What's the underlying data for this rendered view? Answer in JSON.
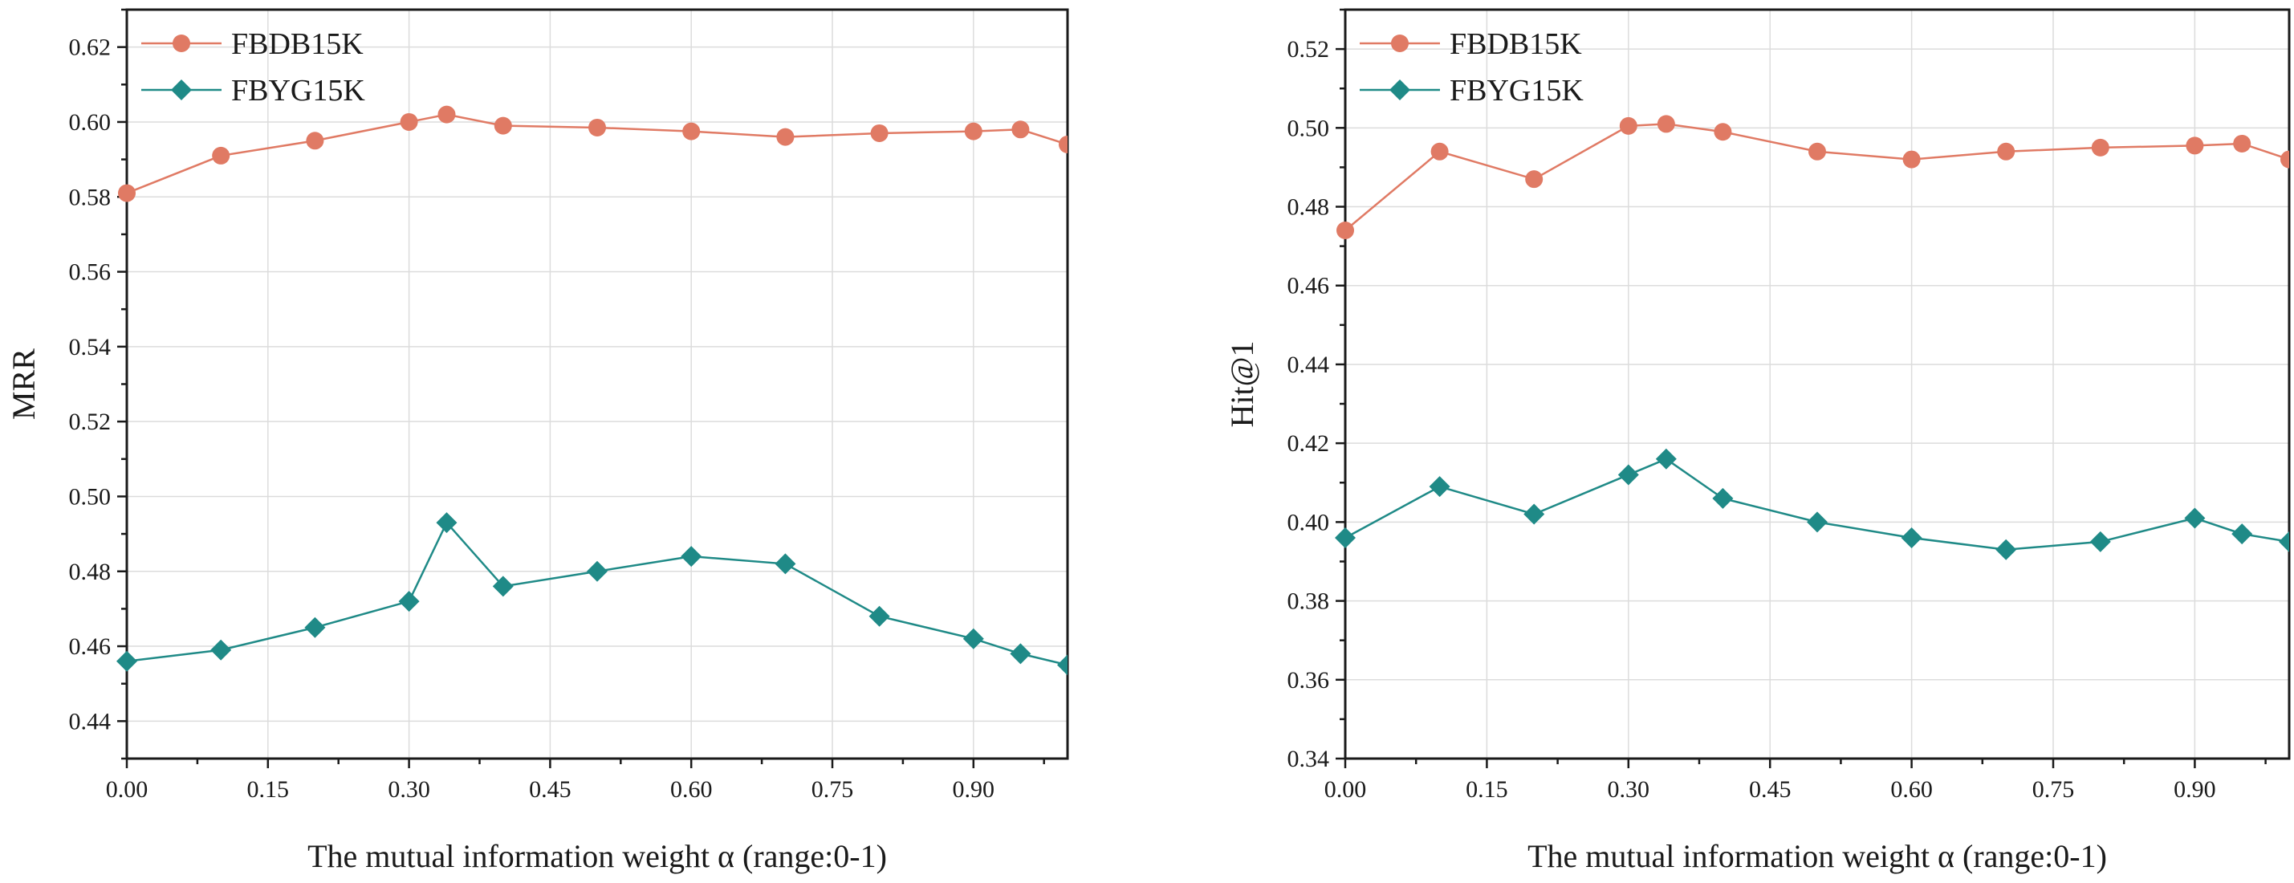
{
  "chart_data": [
    {
      "type": "line",
      "title": "",
      "xlabel": "The mutual information weight α (range:0-1)",
      "ylabel": "MRR",
      "xlim": [
        0,
        1
      ],
      "ylim": [
        0.43,
        0.63
      ],
      "xticks": [
        0.0,
        0.15,
        0.3,
        0.45,
        0.6,
        0.75,
        0.9
      ],
      "xtick_labels": [
        "0.00",
        "0.15",
        "0.30",
        "0.45",
        "0.60",
        "0.75",
        "0.90"
      ],
      "yticks": [
        0.44,
        0.46,
        0.48,
        0.5,
        0.52,
        0.54,
        0.56,
        0.58,
        0.6,
        0.62
      ],
      "ytick_labels": [
        "0.44",
        "0.46",
        "0.48",
        "0.50",
        "0.52",
        "0.54",
        "0.56",
        "0.58",
        "0.60",
        "0.62"
      ],
      "grid": true,
      "legend_position": "top-left",
      "x": [
        0.0,
        0.1,
        0.2,
        0.3,
        0.34,
        0.4,
        0.5,
        0.6,
        0.7,
        0.8,
        0.9,
        0.95,
        1.0
      ],
      "series": [
        {
          "name": "FBDB15K",
          "marker": "circle",
          "color": "#e07a64",
          "values": [
            0.581,
            0.591,
            0.595,
            0.6,
            0.602,
            0.599,
            0.5985,
            0.5975,
            0.596,
            0.597,
            0.5975,
            0.598,
            0.594
          ]
        },
        {
          "name": "FBYG15K",
          "marker": "diamond",
          "color": "#1f8a87",
          "values": [
            0.456,
            0.459,
            0.465,
            0.472,
            0.493,
            0.476,
            0.48,
            0.484,
            0.482,
            0.468,
            0.462,
            0.458,
            0.455
          ]
        }
      ]
    },
    {
      "type": "line",
      "title": "",
      "xlabel": "The mutual information weight α (range:0-1)",
      "ylabel": "Hit@1",
      "xlim": [
        0,
        1
      ],
      "ylim": [
        0.34,
        0.53
      ],
      "xticks": [
        0.0,
        0.15,
        0.3,
        0.45,
        0.6,
        0.75,
        0.9
      ],
      "xtick_labels": [
        "0.00",
        "0.15",
        "0.30",
        "0.45",
        "0.60",
        "0.75",
        "0.90"
      ],
      "yticks": [
        0.34,
        0.36,
        0.38,
        0.4,
        0.42,
        0.44,
        0.46,
        0.48,
        0.5,
        0.52
      ],
      "ytick_labels": [
        "0.34",
        "0.36",
        "0.38",
        "0.40",
        "0.42",
        "0.44",
        "0.46",
        "0.48",
        "0.50",
        "0.52"
      ],
      "grid": true,
      "legend_position": "top-left",
      "x": [
        0.0,
        0.1,
        0.2,
        0.3,
        0.34,
        0.4,
        0.5,
        0.6,
        0.7,
        0.8,
        0.9,
        0.95,
        1.0
      ],
      "series": [
        {
          "name": "FBDB15K",
          "marker": "circle",
          "color": "#e07a64",
          "values": [
            0.474,
            0.494,
            0.487,
            0.5005,
            0.501,
            0.499,
            0.494,
            0.492,
            0.494,
            0.495,
            0.4955,
            0.496,
            0.492
          ]
        },
        {
          "name": "FBYG15K",
          "marker": "diamond",
          "color": "#1f8a87",
          "values": [
            0.396,
            0.409,
            0.402,
            0.412,
            0.416,
            0.406,
            0.4,
            0.396,
            0.393,
            0.395,
            0.401,
            0.397,
            0.395
          ]
        }
      ]
    }
  ]
}
